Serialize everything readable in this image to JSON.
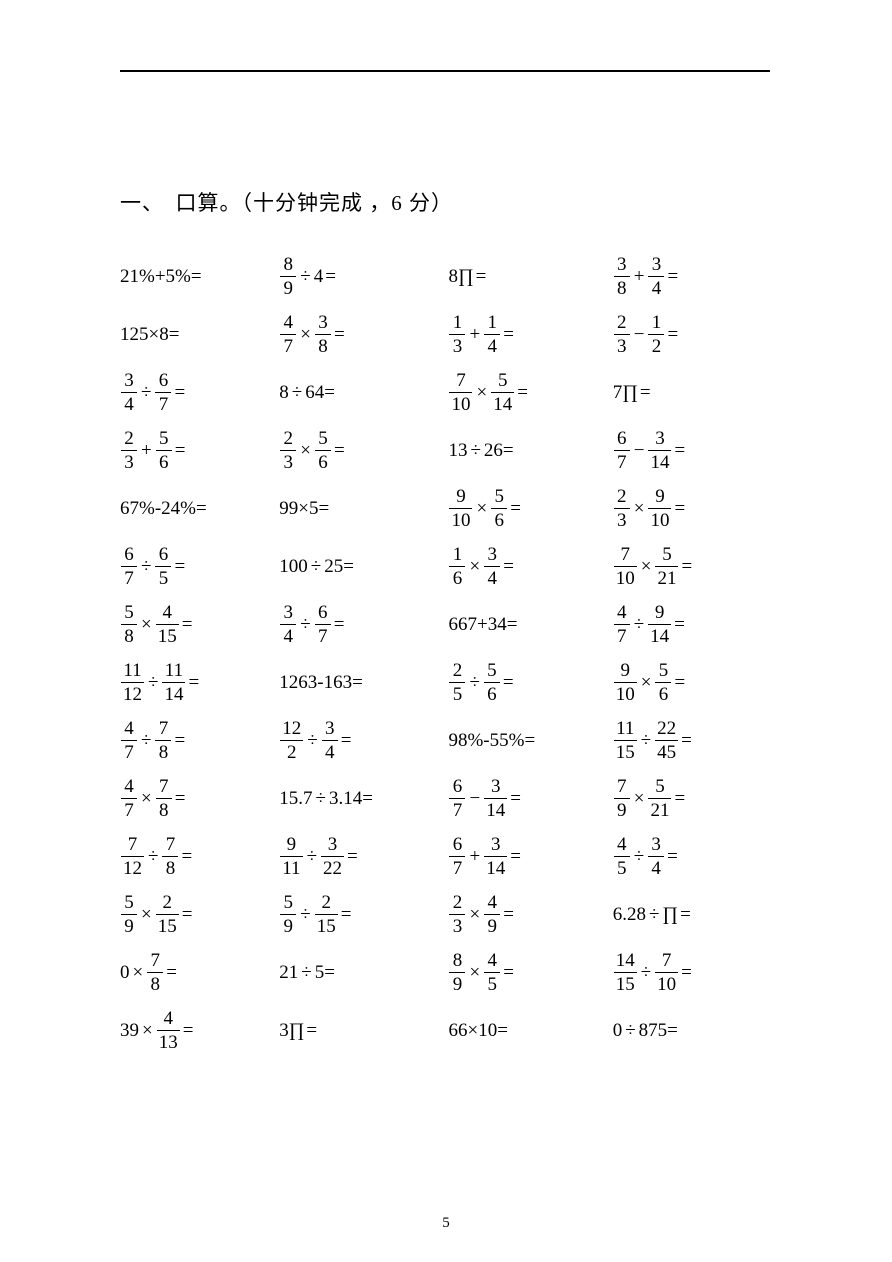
{
  "heading": "一、　口算。（十分钟完成 ，6 分）",
  "page_number": "5",
  "rows": [
    [
      [
        {
          "t": "text",
          "v": "21%+5%="
        }
      ],
      [
        {
          "t": "frac",
          "n": "8",
          "d": "9"
        },
        {
          "t": "op",
          "v": "÷"
        },
        {
          "t": "text",
          "v": "4"
        },
        {
          "t": "eq"
        }
      ],
      [
        {
          "t": "text",
          "v": "8"
        },
        {
          "t": "text",
          "v": "∏"
        },
        {
          "t": "eq"
        }
      ],
      [
        {
          "t": "frac",
          "n": "3",
          "d": "8"
        },
        {
          "t": "op",
          "v": "+"
        },
        {
          "t": "frac",
          "n": "3",
          "d": "4"
        },
        {
          "t": "eq"
        }
      ]
    ],
    [
      [
        {
          "t": "text",
          "v": "125×8="
        }
      ],
      [
        {
          "t": "frac",
          "n": "4",
          "d": "7"
        },
        {
          "t": "op",
          "v": "×"
        },
        {
          "t": "frac",
          "n": "3",
          "d": "8"
        },
        {
          "t": "eq"
        }
      ],
      [
        {
          "t": "frac",
          "n": "1",
          "d": "3"
        },
        {
          "t": "op",
          "v": "+"
        },
        {
          "t": "frac",
          "n": "1",
          "d": "4"
        },
        {
          "t": "eq"
        }
      ],
      [
        {
          "t": "frac",
          "n": "2",
          "d": "3"
        },
        {
          "t": "op",
          "v": "−"
        },
        {
          "t": "frac",
          "n": "1",
          "d": "2"
        },
        {
          "t": "eq"
        }
      ]
    ],
    [
      [
        {
          "t": "frac",
          "n": "3",
          "d": "4"
        },
        {
          "t": "op",
          "v": "÷"
        },
        {
          "t": "frac",
          "n": "6",
          "d": "7"
        },
        {
          "t": "eq"
        }
      ],
      [
        {
          "t": "text",
          "v": "8"
        },
        {
          "t": "op",
          "v": "÷"
        },
        {
          "t": "text",
          "v": "64="
        }
      ],
      [
        {
          "t": "frac",
          "n": "7",
          "d": "10"
        },
        {
          "t": "op",
          "v": "×"
        },
        {
          "t": "frac",
          "n": "5",
          "d": "14"
        },
        {
          "t": "eq"
        }
      ],
      [
        {
          "t": "text",
          "v": "7"
        },
        {
          "t": "text",
          "v": "∏"
        },
        {
          "t": "eq"
        }
      ]
    ],
    [
      [
        {
          "t": "frac",
          "n": "2",
          "d": "3"
        },
        {
          "t": "op",
          "v": "+"
        },
        {
          "t": "frac",
          "n": "5",
          "d": "6"
        },
        {
          "t": "eq"
        }
      ],
      [
        {
          "t": "frac",
          "n": "2",
          "d": "3"
        },
        {
          "t": "op",
          "v": "×"
        },
        {
          "t": "frac",
          "n": "5",
          "d": "6"
        },
        {
          "t": "eq"
        }
      ],
      [
        {
          "t": "text",
          "v": "13"
        },
        {
          "t": "op",
          "v": "÷"
        },
        {
          "t": "text",
          "v": "26="
        }
      ],
      [
        {
          "t": "frac",
          "n": "6",
          "d": "7"
        },
        {
          "t": "op",
          "v": "−"
        },
        {
          "t": "frac",
          "n": "3",
          "d": "14"
        },
        {
          "t": "eq"
        }
      ]
    ],
    [
      [
        {
          "t": "text",
          "v": "67%-24%="
        }
      ],
      [
        {
          "t": "text",
          "v": "99×5="
        }
      ],
      [
        {
          "t": "frac",
          "n": "9",
          "d": "10"
        },
        {
          "t": "op",
          "v": "×"
        },
        {
          "t": "frac",
          "n": "5",
          "d": "6"
        },
        {
          "t": "eq"
        }
      ],
      [
        {
          "t": "frac",
          "n": "2",
          "d": "3"
        },
        {
          "t": "op",
          "v": "×"
        },
        {
          "t": "frac",
          "n": "9",
          "d": "10"
        },
        {
          "t": "eq"
        }
      ]
    ],
    [
      [
        {
          "t": "frac",
          "n": "6",
          "d": "7"
        },
        {
          "t": "op",
          "v": "÷"
        },
        {
          "t": "frac",
          "n": "6",
          "d": "5"
        },
        {
          "t": "eq"
        }
      ],
      [
        {
          "t": "text",
          "v": "100"
        },
        {
          "t": "op",
          "v": "÷"
        },
        {
          "t": "text",
          "v": "25="
        }
      ],
      [
        {
          "t": "frac",
          "n": "1",
          "d": "6"
        },
        {
          "t": "op",
          "v": "×"
        },
        {
          "t": "frac",
          "n": "3",
          "d": "4"
        },
        {
          "t": "eq"
        }
      ],
      [
        {
          "t": "frac",
          "n": "7",
          "d": "10"
        },
        {
          "t": "op",
          "v": "×"
        },
        {
          "t": "frac",
          "n": "5",
          "d": "21"
        },
        {
          "t": "eq"
        }
      ]
    ],
    [
      [
        {
          "t": "frac",
          "n": "5",
          "d": "8"
        },
        {
          "t": "op",
          "v": "×"
        },
        {
          "t": "frac",
          "n": "4",
          "d": "15"
        },
        {
          "t": "eq"
        }
      ],
      [
        {
          "t": "frac",
          "n": "3",
          "d": "4"
        },
        {
          "t": "op",
          "v": "÷"
        },
        {
          "t": "frac",
          "n": "6",
          "d": "7"
        },
        {
          "t": "eq"
        }
      ],
      [
        {
          "t": "text",
          "v": "667+34="
        }
      ],
      [
        {
          "t": "frac",
          "n": "4",
          "d": "7"
        },
        {
          "t": "op",
          "v": "÷"
        },
        {
          "t": "frac",
          "n": "9",
          "d": "14"
        },
        {
          "t": "eq"
        }
      ]
    ],
    [
      [
        {
          "t": "frac",
          "n": "11",
          "d": "12"
        },
        {
          "t": "op",
          "v": "÷"
        },
        {
          "t": "frac",
          "n": "11",
          "d": "14"
        },
        {
          "t": "eq"
        }
      ],
      [
        {
          "t": "text",
          "v": "1263-163="
        }
      ],
      [
        {
          "t": "frac",
          "n": "2",
          "d": "5"
        },
        {
          "t": "op",
          "v": "÷"
        },
        {
          "t": "frac",
          "n": "5",
          "d": "6"
        },
        {
          "t": "eq"
        }
      ],
      [
        {
          "t": "frac",
          "n": "9",
          "d": "10"
        },
        {
          "t": "op",
          "v": "×"
        },
        {
          "t": "frac",
          "n": "5",
          "d": "6"
        },
        {
          "t": "eq"
        }
      ]
    ],
    [
      [
        {
          "t": "frac",
          "n": "4",
          "d": "7"
        },
        {
          "t": "op",
          "v": "÷"
        },
        {
          "t": "frac",
          "n": "7",
          "d": "8"
        },
        {
          "t": "eq"
        }
      ],
      [
        {
          "t": "frac",
          "n": "12",
          "d": "2"
        },
        {
          "t": "op",
          "v": "÷"
        },
        {
          "t": "frac",
          "n": "3",
          "d": "4"
        },
        {
          "t": "eq"
        }
      ],
      [
        {
          "t": "text",
          "v": "98%-55%="
        }
      ],
      [
        {
          "t": "frac",
          "n": "11",
          "d": "15"
        },
        {
          "t": "op",
          "v": "÷"
        },
        {
          "t": "frac",
          "n": "22",
          "d": "45"
        },
        {
          "t": "eq"
        }
      ]
    ],
    [
      [
        {
          "t": "frac",
          "n": "4",
          "d": "7"
        },
        {
          "t": "op",
          "v": "×"
        },
        {
          "t": "frac",
          "n": "7",
          "d": "8"
        },
        {
          "t": "eq"
        }
      ],
      [
        {
          "t": "text",
          "v": "15.7"
        },
        {
          "t": "op",
          "v": "÷"
        },
        {
          "t": "text",
          "v": "3.14="
        }
      ],
      [
        {
          "t": "frac",
          "n": "6",
          "d": "7"
        },
        {
          "t": "op",
          "v": "−"
        },
        {
          "t": "frac",
          "n": "3",
          "d": "14"
        },
        {
          "t": "eq"
        }
      ],
      [
        {
          "t": "frac",
          "n": "7",
          "d": "9"
        },
        {
          "t": "op",
          "v": "×"
        },
        {
          "t": "frac",
          "n": "5",
          "d": "21"
        },
        {
          "t": "eq"
        }
      ]
    ],
    [
      [
        {
          "t": "frac",
          "n": "7",
          "d": "12"
        },
        {
          "t": "op",
          "v": "÷"
        },
        {
          "t": "frac",
          "n": "7",
          "d": "8"
        },
        {
          "t": "eq"
        }
      ],
      [
        {
          "t": "frac",
          "n": "9",
          "d": "11"
        },
        {
          "t": "op",
          "v": "÷"
        },
        {
          "t": "frac",
          "n": "3",
          "d": "22"
        },
        {
          "t": "eq"
        }
      ],
      [
        {
          "t": "frac",
          "n": "6",
          "d": "7"
        },
        {
          "t": "op",
          "v": "+"
        },
        {
          "t": "frac",
          "n": "3",
          "d": "14"
        },
        {
          "t": "eq"
        }
      ],
      [
        {
          "t": "frac",
          "n": "4",
          "d": "5"
        },
        {
          "t": "op",
          "v": "÷"
        },
        {
          "t": "frac",
          "n": "3",
          "d": "4"
        },
        {
          "t": "eq"
        }
      ]
    ],
    [
      [
        {
          "t": "frac",
          "n": "5",
          "d": "9"
        },
        {
          "t": "op",
          "v": "×"
        },
        {
          "t": "frac",
          "n": "2",
          "d": "15"
        },
        {
          "t": "eq"
        }
      ],
      [
        {
          "t": "frac",
          "n": "5",
          "d": "9"
        },
        {
          "t": "op",
          "v": "÷"
        },
        {
          "t": "frac",
          "n": "2",
          "d": "15"
        },
        {
          "t": "eq"
        }
      ],
      [
        {
          "t": "frac",
          "n": "2",
          "d": "3"
        },
        {
          "t": "op",
          "v": "×"
        },
        {
          "t": "frac",
          "n": "4",
          "d": "9"
        },
        {
          "t": "eq"
        }
      ],
      [
        {
          "t": "text",
          "v": "6.28"
        },
        {
          "t": "op",
          "v": "÷"
        },
        {
          "t": "text",
          "v": "∏"
        },
        {
          "t": "eq"
        }
      ]
    ],
    [
      [
        {
          "t": "text",
          "v": "0"
        },
        {
          "t": "op",
          "v": "×"
        },
        {
          "t": "frac",
          "n": "7",
          "d": "8"
        },
        {
          "t": "eq"
        }
      ],
      [
        {
          "t": "text",
          "v": "21"
        },
        {
          "t": "op",
          "v": "÷"
        },
        {
          "t": "text",
          "v": "5="
        }
      ],
      [
        {
          "t": "frac",
          "n": "8",
          "d": "9"
        },
        {
          "t": "op",
          "v": "×"
        },
        {
          "t": "frac",
          "n": "4",
          "d": "5"
        },
        {
          "t": "eq"
        }
      ],
      [
        {
          "t": "frac",
          "n": "14",
          "d": "15"
        },
        {
          "t": "op",
          "v": "÷"
        },
        {
          "t": "frac",
          "n": "7",
          "d": "10"
        },
        {
          "t": "eq"
        }
      ]
    ],
    [
      [
        {
          "t": "text",
          "v": "39"
        },
        {
          "t": "op",
          "v": "×"
        },
        {
          "t": "frac",
          "n": "4",
          "d": "13"
        },
        {
          "t": "eq"
        }
      ],
      [
        {
          "t": "text",
          "v": "3"
        },
        {
          "t": "text",
          "v": "∏"
        },
        {
          "t": "eq"
        }
      ],
      [
        {
          "t": "text",
          "v": "66×10="
        }
      ],
      [
        {
          "t": "text",
          "v": "0"
        },
        {
          "t": "op",
          "v": "÷"
        },
        {
          "t": "text",
          "v": "875="
        }
      ]
    ]
  ]
}
